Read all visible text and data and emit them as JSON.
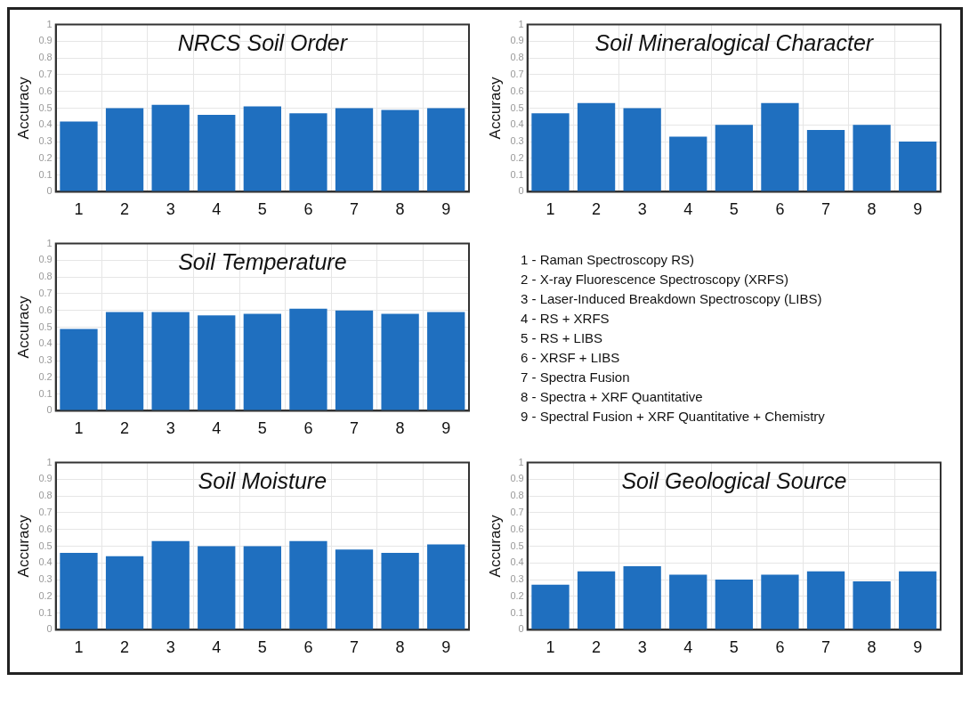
{
  "chart_data": [
    {
      "type": "bar",
      "title": "NRCS Soil Order",
      "ylabel": "Accuracy",
      "categories": [
        "1",
        "2",
        "3",
        "4",
        "5",
        "6",
        "7",
        "8",
        "9"
      ],
      "values": [
        0.42,
        0.5,
        0.52,
        0.46,
        0.51,
        0.47,
        0.5,
        0.49,
        0.5
      ],
      "color": "#1f6fbf",
      "ylim": [
        0,
        1
      ],
      "yticks": [
        0,
        0.1,
        0.2,
        0.3,
        0.4,
        0.5,
        0.6,
        0.7,
        0.8,
        0.9,
        1
      ],
      "grid": true
    },
    {
      "type": "bar",
      "title": "Soil Mineralogical Character",
      "ylabel": "Accuracy",
      "categories": [
        "1",
        "2",
        "3",
        "4",
        "5",
        "6",
        "7",
        "8",
        "9"
      ],
      "values": [
        0.47,
        0.53,
        0.5,
        0.33,
        0.4,
        0.53,
        0.37,
        0.4,
        0.3
      ],
      "color": "#1f6fbf",
      "ylim": [
        0,
        1
      ],
      "yticks": [
        0,
        0.1,
        0.2,
        0.3,
        0.4,
        0.5,
        0.6,
        0.7,
        0.8,
        0.9,
        1
      ],
      "grid": true
    },
    {
      "type": "bar",
      "title": "Soil Temperature",
      "ylabel": "Accuracy",
      "categories": [
        "1",
        "2",
        "3",
        "4",
        "5",
        "6",
        "7",
        "8",
        "9"
      ],
      "values": [
        0.49,
        0.59,
        0.59,
        0.57,
        0.58,
        0.61,
        0.6,
        0.58,
        0.59
      ],
      "color": "#1f6fbf",
      "ylim": [
        0,
        1
      ],
      "yticks": [
        0,
        0.1,
        0.2,
        0.3,
        0.4,
        0.5,
        0.6,
        0.7,
        0.8,
        0.9,
        1
      ],
      "grid": true
    },
    {
      "type": "other",
      "annotations": [
        "1 - Raman Spectroscopy RS)",
        "2 - X-ray Fluorescence Spectroscopy (XRFS)",
        "3 - Laser-Induced Breakdown Spectroscopy (LIBS)",
        "4 - RS + XRFS",
        "5 - RS + LIBS",
        "6 - XRSF + LIBS",
        "7 - Spectra Fusion",
        "8 - Spectra + XRF Quantitative",
        "9 - Spectral Fusion + XRF Quantitative + Chemistry"
      ]
    },
    {
      "type": "bar",
      "title": "Soil Moisture",
      "ylabel": "Accuracy",
      "categories": [
        "1",
        "2",
        "3",
        "4",
        "5",
        "6",
        "7",
        "8",
        "9"
      ],
      "values": [
        0.46,
        0.44,
        0.53,
        0.5,
        0.5,
        0.53,
        0.48,
        0.46,
        0.51
      ],
      "color": "#1f6fbf",
      "ylim": [
        0,
        1
      ],
      "yticks": [
        0,
        0.1,
        0.2,
        0.3,
        0.4,
        0.5,
        0.6,
        0.7,
        0.8,
        0.9,
        1
      ],
      "grid": true
    },
    {
      "type": "bar",
      "title": "Soil Geological Source",
      "ylabel": "Accuracy",
      "categories": [
        "1",
        "2",
        "3",
        "4",
        "5",
        "6",
        "7",
        "8",
        "9"
      ],
      "values": [
        0.27,
        0.35,
        0.38,
        0.33,
        0.3,
        0.33,
        0.35,
        0.29,
        0.35
      ],
      "color": "#1f6fbf",
      "ylim": [
        0,
        1
      ],
      "yticks": [
        0,
        0.1,
        0.2,
        0.3,
        0.4,
        0.5,
        0.6,
        0.7,
        0.8,
        0.9,
        1
      ],
      "grid": true
    }
  ]
}
